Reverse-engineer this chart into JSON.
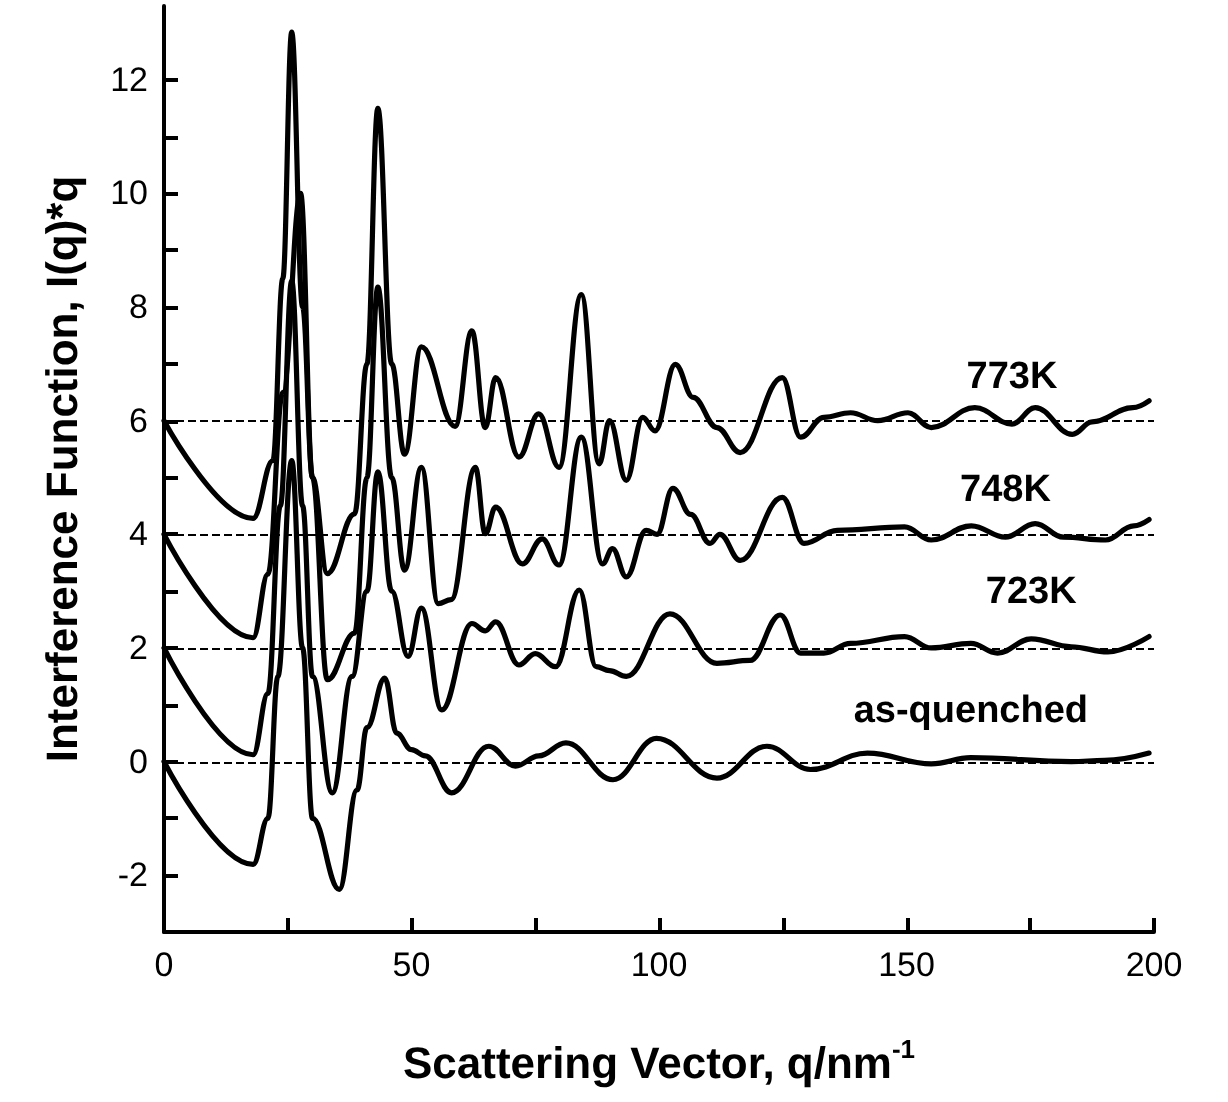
{
  "chart_data": {
    "type": "line",
    "xlabel": "Scattering Vector, q/nm$^{-1}$",
    "ylabel": "Interference Function, I(q)*q",
    "xlim": [
      0,
      200
    ],
    "ylim": [
      -3,
      13.3
    ],
    "xticks": [
      0,
      {
        "value": 25,
        "label": null
      },
      50,
      {
        "value": 75,
        "label": null
      },
      100,
      {
        "value": 125,
        "label": null
      },
      150,
      {
        "value": 175,
        "label": null
      },
      200
    ],
    "yticks": [
      -2,
      {
        "value": -1,
        "label": null
      },
      0,
      {
        "value": 1,
        "label": null
      },
      2,
      {
        "value": 3,
        "label": null
      },
      4,
      {
        "value": 5,
        "label": null
      },
      6,
      {
        "value": 7,
        "label": null
      },
      8,
      {
        "value": 9,
        "label": null
      },
      10,
      {
        "value": 11,
        "label": null
      },
      12
    ],
    "grid": false,
    "marker": "none",
    "line_style": "solid",
    "ref_lines": [
      {
        "axis": "y",
        "value": 0,
        "color": "#000000",
        "line_style": "dashed"
      },
      {
        "axis": "y",
        "value": 2,
        "color": "#000000",
        "line_style": "dashed"
      },
      {
        "axis": "y",
        "value": 4,
        "color": "#000000",
        "line_style": "dashed"
      },
      {
        "axis": "y",
        "value": 6,
        "color": "#000000",
        "line_style": "dashed"
      }
    ],
    "series": [
      {
        "name": "as-quenched",
        "color": "#000000",
        "x": [
          0,
          18,
          21,
          23,
          25.8,
          28,
          30,
          35.4,
          39,
          41,
          44.6,
          47,
          50,
          52.8,
          58.1,
          65.6,
          71,
          75.7,
          81.2,
          90.7,
          99.5,
          111.7,
          121.8,
          130.6,
          142.1,
          155,
          163,
          183.3,
          190,
          199
        ],
        "values": [
          0,
          -1.81,
          -1.0,
          1.5,
          5.3,
          2.0,
          -1.0,
          -2.25,
          -0.5,
          0.6,
          1.47,
          0.5,
          0.21,
          0.1,
          -0.55,
          0.27,
          -0.08,
          0.1,
          0.33,
          -0.32,
          0.41,
          -0.29,
          0.27,
          -0.14,
          0.15,
          -0.04,
          0.07,
          0,
          0.02,
          0.15
        ]
      },
      {
        "name": "723K",
        "color": "#000000",
        "x": [
          0,
          18,
          21,
          23.5,
          25.8,
          28,
          30,
          34,
          38,
          41,
          43.2,
          46,
          49.3,
          52,
          56.1,
          62.2,
          64.9,
          67,
          71.7,
          75,
          79.1,
          83.9,
          87.3,
          90,
          93.4,
          102.2,
          111.7,
          118.4,
          124.5,
          128.6,
          133.3,
          138.7,
          149.6,
          155,
          163,
          168.4,
          175.2,
          183.3,
          190.7,
          199
        ],
        "values": [
          2,
          0.12,
          1.2,
          4.5,
          8.46,
          4.5,
          1.5,
          -0.55,
          1.5,
          3.0,
          5.1,
          3.0,
          1.85,
          2.7,
          0.91,
          2.43,
          2.3,
          2.46,
          1.7,
          1.9,
          1.67,
          3.02,
          1.67,
          1.6,
          1.5,
          2.6,
          1.73,
          1.78,
          2.58,
          1.91,
          1.91,
          2.08,
          2.2,
          2.0,
          2.08,
          1.91,
          2.16,
          2.02,
          1.93,
          2.2
        ]
      },
      {
        "name": "748K",
        "color": "#000000",
        "x": [
          0,
          18,
          21,
          24,
          27.6,
          30,
          33,
          38.5,
          41,
          43.2,
          46,
          48.6,
          52,
          55.4,
          58,
          62.9,
          64.9,
          67,
          72.4,
          76.4,
          79.8,
          84.3,
          88.6,
          90.6,
          93.4,
          97.4,
          99.6,
          102.8,
          106.4,
          110.3,
          112.3,
          116.4,
          124.9,
          129.3,
          136,
          149.6,
          155,
          163.1,
          170,
          176,
          181.7,
          190.2,
          195.9,
          199
        ],
        "values": [
          4,
          2.18,
          3.3,
          6.5,
          10.0,
          5.0,
          1.44,
          2.26,
          5.0,
          8.35,
          5.0,
          3.37,
          5.18,
          2.78,
          2.85,
          5.18,
          4.01,
          4.48,
          3.48,
          3.92,
          3.46,
          5.71,
          3.48,
          3.75,
          3.25,
          4.07,
          4.0,
          4.81,
          4.35,
          3.84,
          4.0,
          3.54,
          4.65,
          3.84,
          4.07,
          4.13,
          3.9,
          4.15,
          3.95,
          4.19,
          3.95,
          3.9,
          4.15,
          4.26
        ]
      },
      {
        "name": "773K",
        "color": "#000000",
        "x": [
          0,
          18,
          22,
          24,
          25.8,
          28,
          30,
          33,
          38.5,
          41,
          43.2,
          46,
          48.6,
          52,
          58.8,
          62.2,
          64.9,
          67,
          71.7,
          75.7,
          79.8,
          84.3,
          87.9,
          90,
          93.4,
          96.7,
          99.2,
          103.3,
          106.9,
          111.7,
          116.4,
          124.9,
          128.6,
          133.3,
          138.7,
          144.2,
          150.3,
          155,
          163.8,
          171.3,
          176,
          183.5,
          187.5,
          195.7,
          199
        ],
        "values": [
          6,
          4.28,
          5.3,
          8.5,
          12.84,
          8.0,
          5.0,
          3.31,
          4.36,
          7.0,
          11.5,
          7.0,
          5.41,
          7.3,
          5.9,
          7.58,
          5.88,
          6.76,
          5.36,
          6.12,
          5.18,
          8.22,
          5.24,
          6.0,
          4.95,
          6.06,
          5.82,
          6.99,
          6.41,
          5.88,
          5.44,
          6.76,
          5.71,
          6.06,
          6.14,
          6.0,
          6.14,
          5.88,
          6.23,
          5.94,
          6.23,
          5.76,
          5.98,
          6.23,
          6.35
        ]
      }
    ]
  }
}
